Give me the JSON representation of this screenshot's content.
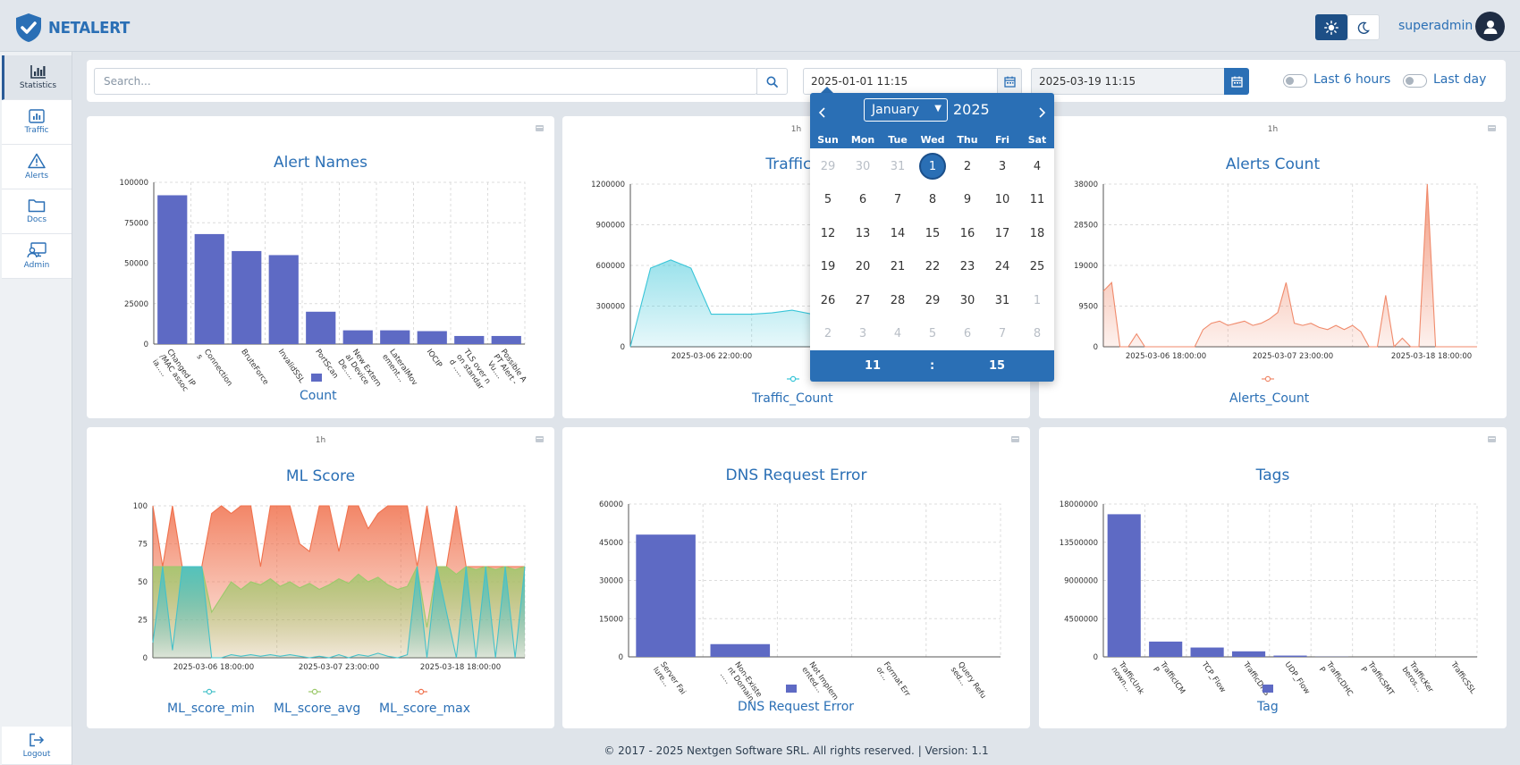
{
  "app": {
    "name": "NETALERT"
  },
  "header": {
    "user_name": "superadmin"
  },
  "sidebar": {
    "items": [
      {
        "label": "Statistics",
        "icon": "bar-chart-icon",
        "active": true
      },
      {
        "label": "Traffic",
        "icon": "traffic-chart-icon"
      },
      {
        "label": "Alerts",
        "icon": "warning-icon"
      },
      {
        "label": "Docs",
        "icon": "folder-icon"
      },
      {
        "label": "Admin",
        "icon": "admin-monitor-icon"
      }
    ],
    "logout_label": "Logout"
  },
  "filters": {
    "search_placeholder": "Search...",
    "start_date": "2025-01-01 11:15",
    "end_date": "2025-03-19 11:15",
    "toggle_6h_label": "Last 6 hours",
    "toggle_day_label": "Last day"
  },
  "datepicker": {
    "month": "January",
    "year": "2025",
    "weekdays": [
      "Sun",
      "Mon",
      "Tue",
      "Wed",
      "Thu",
      "Fri",
      "Sat"
    ],
    "days": [
      [
        "29",
        "30",
        "31",
        "1",
        "2",
        "3",
        "4"
      ],
      [
        "5",
        "6",
        "7",
        "8",
        "9",
        "10",
        "11"
      ],
      [
        "12",
        "13",
        "14",
        "15",
        "16",
        "17",
        "18"
      ],
      [
        "19",
        "20",
        "21",
        "22",
        "23",
        "24",
        "25"
      ],
      [
        "26",
        "27",
        "28",
        "29",
        "30",
        "31",
        "1"
      ],
      [
        "2",
        "3",
        "4",
        "5",
        "6",
        "7",
        "8"
      ]
    ],
    "selected_day": "1",
    "hour": "11",
    "separator": ":",
    "minute": "15"
  },
  "cards": {
    "alert_names": {
      "title": "Alert Names",
      "legend": "Count"
    },
    "traffic_count": {
      "title": "Traffic C",
      "interval": "1h",
      "legend": "Traffic_Count"
    },
    "alerts_count": {
      "title": "Alerts Count",
      "interval": "1h",
      "legend": "Alerts_Count"
    },
    "ml_score": {
      "title": "ML Score",
      "interval": "1h",
      "legend_min": "ML_score_min",
      "legend_avg": "ML_score_avg",
      "legend_max": "ML_score_max"
    },
    "dns_error": {
      "title": "DNS Request Error",
      "legend": "DNS Request Error"
    },
    "tags": {
      "title": "Tags",
      "legend": "Tag"
    }
  },
  "colors": {
    "bar": "#5e6ac4",
    "traffic": "#38c5d8",
    "alerts": "#f08a6b",
    "ml_min": "#45c1c9",
    "ml_avg": "#9cc96b",
    "ml_max": "#f0714d",
    "accent": "#2a6fb5"
  },
  "chart_data": [
    {
      "type": "bar",
      "title": "Alert Names",
      "categories": [
        "Changed IP/MAC associa...",
        "Connections",
        "BruteForce",
        "InvalidSSL",
        "PortScan",
        "New External Device De...",
        "LateralMovement...",
        "IOCIP",
        "TLS over non standard ...",
        "Possible APT Alert - Vu..."
      ],
      "series": [
        {
          "name": "Count",
          "values": [
            92000,
            68000,
            57500,
            55000,
            20000,
            8500,
            8500,
            8000,
            5000,
            5000
          ]
        }
      ],
      "yticks": [
        "0",
        "25000",
        "50000",
        "75000",
        "100000"
      ],
      "ylim": [
        0,
        100000
      ]
    },
    {
      "type": "area",
      "title": "Traffic C",
      "xticks": [
        "2025-03-06 22:00:00"
      ],
      "yticks": [
        "0",
        "300000",
        "600000",
        "900000",
        "1200000"
      ],
      "ylim": [
        0,
        1200000
      ],
      "series": [
        {
          "name": "Traffic_Count",
          "values": [
            0,
            580000,
            640000,
            580000,
            240000,
            240000,
            240000,
            250000,
            270000,
            240000,
            240000,
            240000,
            245000,
            300000,
            1050000,
            1150000,
            900000,
            1200000,
            1000000
          ]
        }
      ]
    },
    {
      "type": "area",
      "title": "Alerts Count",
      "xticks": [
        "2025-03-06 18:00:00",
        "2025-03-07 23:00:00",
        "2025-03-18 18:00:00"
      ],
      "yticks": [
        "0",
        "9500",
        "19000",
        "28500",
        "38000"
      ],
      "ylim": [
        0,
        38000
      ],
      "series": [
        {
          "name": "Alerts_Count",
          "values": [
            13000,
            15000,
            0,
            0,
            3000,
            0,
            0,
            0,
            0,
            0,
            0,
            0,
            4000,
            5500,
            6000,
            5000,
            5500,
            6000,
            5000,
            5500,
            6500,
            8000,
            15000,
            5500,
            5000,
            5500,
            4500,
            4000,
            5000,
            4000,
            5000,
            3500,
            0,
            0,
            12000,
            0,
            2000,
            0,
            0,
            38000,
            0,
            0,
            0,
            0,
            0,
            0
          ]
        }
      ]
    },
    {
      "type": "area",
      "title": "ML Score",
      "xticks": [
        "2025-03-06 18:00:00",
        "2025-03-07 23:00:00",
        "2025-03-18 18:00:00"
      ],
      "yticks": [
        "0",
        "25",
        "50",
        "75",
        "100"
      ],
      "ylim": [
        0,
        100
      ],
      "series": [
        {
          "name": "ML_score_min",
          "values": [
            10,
            60,
            5,
            60,
            60,
            60,
            0,
            0,
            2,
            1,
            2,
            1,
            2,
            1,
            2,
            1,
            0,
            1,
            0,
            2,
            0,
            2,
            1,
            3,
            1,
            0,
            2,
            60,
            0,
            60,
            30,
            0,
            60,
            0,
            60,
            0,
            60,
            0,
            60
          ]
        },
        {
          "name": "ML_score_avg",
          "values": [
            60,
            60,
            60,
            60,
            60,
            60,
            30,
            40,
            50,
            45,
            50,
            48,
            52,
            47,
            50,
            46,
            49,
            45,
            48,
            52,
            49,
            55,
            50,
            53,
            48,
            45,
            47,
            60,
            20,
            60,
            60,
            55,
            60,
            58,
            60,
            58,
            60,
            58,
            60
          ]
        },
        {
          "name": "ML_score_max",
          "values": [
            100,
            60,
            100,
            60,
            60,
            60,
            95,
            100,
            95,
            100,
            100,
            60,
            100,
            100,
            100,
            75,
            70,
            100,
            100,
            70,
            100,
            100,
            85,
            95,
            100,
            100,
            100,
            60,
            100,
            60,
            60,
            100,
            60,
            60,
            60,
            60,
            60,
            60,
            60
          ]
        }
      ]
    },
    {
      "type": "bar",
      "title": "DNS Request Error",
      "categories": [
        "Server Failure...",
        "Non-Existent Domain...",
        "Not Implemented...",
        "Format Error...",
        "Query Refused..."
      ],
      "series": [
        {
          "name": "DNS Request Error",
          "values": [
            48000,
            5000,
            0,
            0,
            0
          ]
        }
      ],
      "yticks": [
        "0",
        "15000",
        "30000",
        "45000",
        "60000"
      ],
      "ylim": [
        0,
        60000
      ]
    },
    {
      "type": "bar",
      "title": "Tags",
      "categories": [
        "TrafficUnknown...",
        "TrafficICMP",
        "TCP_Flow",
        "TrafficDNS",
        "UDP_Flow",
        "TrafficDHCP",
        "TrafficSMTP",
        "TrafficKerberos...",
        "TrafficSSL"
      ],
      "series": [
        {
          "name": "Tag",
          "values": [
            16800000,
            1800000,
            1100000,
            650000,
            150000,
            20000,
            0,
            0,
            0
          ]
        }
      ],
      "yticks": [
        "0",
        "4500000",
        "9000000",
        "13500000",
        "18000000"
      ],
      "ylim": [
        0,
        18000000
      ]
    }
  ],
  "footer": {
    "text": "© 2017 - 2025 Nextgen Software SRL. All rights reserved. | Version: 1.1"
  }
}
